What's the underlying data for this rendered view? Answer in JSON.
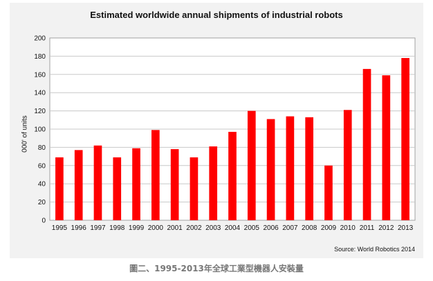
{
  "chart_data": {
    "type": "bar",
    "title": "Estimated worldwide annual shipments of industrial robots",
    "ylabel": "000' of units",
    "xlabel": "",
    "categories": [
      "1995",
      "1996",
      "1997",
      "1998",
      "1999",
      "2000",
      "2001",
      "2002",
      "2003",
      "2004",
      "2005",
      "2006",
      "2007",
      "2008",
      "2009",
      "2010",
      "2011",
      "2012",
      "2013"
    ],
    "values": [
      69,
      77,
      82,
      69,
      79,
      99,
      78,
      69,
      81,
      97,
      120,
      111,
      114,
      113,
      60,
      121,
      166,
      159,
      178
    ],
    "ylim": [
      0,
      200
    ],
    "yticks": [
      0,
      20,
      40,
      60,
      80,
      100,
      120,
      140,
      160,
      180,
      200
    ],
    "grid": true,
    "legend": "none",
    "bar_color": "#ff0000",
    "source": "Source: World Robotics 2014"
  },
  "caption": "圖二、1995-2013年全球工業型機器人安裝量"
}
